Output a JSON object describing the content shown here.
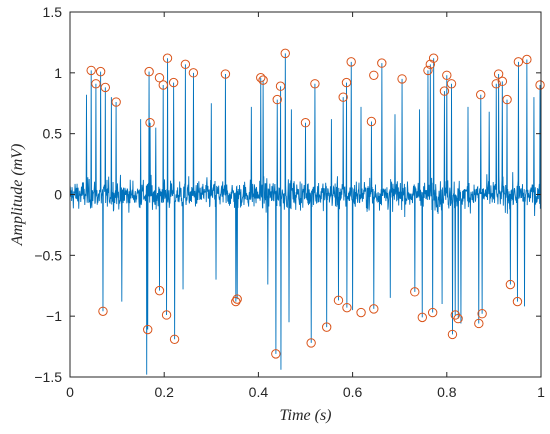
{
  "chart_data": {
    "type": "line",
    "title": "",
    "xlabel": "Time (s)",
    "ylabel": "Amplitude (mV)",
    "xlim": [
      0,
      1
    ],
    "ylim": [
      -1.5,
      1.5
    ],
    "xticks": [
      0,
      0.2,
      0.4,
      0.6,
      0.8,
      1
    ],
    "xtick_labels": [
      "0",
      "0.2",
      "0.4",
      "0.6",
      "0.8",
      "1"
    ],
    "yticks": [
      -1.5,
      -1,
      -0.5,
      0,
      0.5,
      1,
      1.5
    ],
    "ytick_labels": [
      "−1.5",
      "−1",
      "−0.5",
      "0",
      "0.5",
      "1",
      "1.5"
    ],
    "grid": false,
    "box": true,
    "colors": {
      "signal": "#0072BD",
      "markers": "#D95319",
      "axes": "#262626"
    },
    "noise_amplitude": 0.18,
    "series": [
      {
        "kind": "signal",
        "style": "line"
      },
      {
        "kind": "peaks",
        "style": "open-circle-markers",
        "points": [
          [
            0.045,
            1.02
          ],
          [
            0.055,
            0.91
          ],
          [
            0.065,
            1.01
          ],
          [
            0.075,
            0.88
          ],
          [
            0.098,
            0.76
          ],
          [
            0.168,
            1.01
          ],
          [
            0.17,
            0.59
          ],
          [
            0.19,
            0.96
          ],
          [
            0.198,
            0.9
          ],
          [
            0.207,
            1.12
          ],
          [
            0.22,
            0.92
          ],
          [
            0.245,
            1.07
          ],
          [
            0.262,
            1.0
          ],
          [
            0.33,
            0.99
          ],
          [
            0.405,
            0.96
          ],
          [
            0.41,
            0.94
          ],
          [
            0.44,
            0.78
          ],
          [
            0.447,
            0.89
          ],
          [
            0.457,
            1.16
          ],
          [
            0.5,
            0.59
          ],
          [
            0.52,
            0.91
          ],
          [
            0.58,
            0.8
          ],
          [
            0.587,
            0.92
          ],
          [
            0.597,
            1.09
          ],
          [
            0.64,
            0.6
          ],
          [
            0.645,
            0.98
          ],
          [
            0.662,
            1.08
          ],
          [
            0.705,
            0.95
          ],
          [
            0.76,
            1.02
          ],
          [
            0.765,
            1.07
          ],
          [
            0.772,
            1.12
          ],
          [
            0.795,
            0.85
          ],
          [
            0.8,
            0.98
          ],
          [
            0.81,
            0.91
          ],
          [
            0.872,
            0.82
          ],
          [
            0.905,
            0.91
          ],
          [
            0.91,
            0.99
          ],
          [
            0.918,
            0.93
          ],
          [
            0.928,
            0.78
          ],
          [
            0.952,
            1.09
          ],
          [
            0.97,
            1.11
          ],
          [
            0.998,
            0.9
          ],
          [
            0.07,
            -0.96
          ],
          [
            0.165,
            -1.11
          ],
          [
            0.19,
            -0.79
          ],
          [
            0.205,
            -0.99
          ],
          [
            0.222,
            -1.19
          ],
          [
            0.355,
            -0.86
          ],
          [
            0.352,
            -0.88
          ],
          [
            0.437,
            -1.31
          ],
          [
            0.512,
            -1.22
          ],
          [
            0.545,
            -1.09
          ],
          [
            0.57,
            -0.87
          ],
          [
            0.588,
            -0.93
          ],
          [
            0.618,
            -0.97
          ],
          [
            0.645,
            -0.94
          ],
          [
            0.732,
            -0.8
          ],
          [
            0.748,
            -1.01
          ],
          [
            0.77,
            -0.97
          ],
          [
            0.812,
            -1.15
          ],
          [
            0.818,
            -0.99
          ],
          [
            0.824,
            -1.02
          ],
          [
            0.868,
            -1.06
          ],
          [
            0.875,
            -0.98
          ],
          [
            0.935,
            -0.74
          ],
          [
            0.95,
            -0.88
          ]
        ]
      },
      {
        "kind": "spikes_unmarked",
        "style": "line-spikes",
        "points": [
          [
            0.035,
            0.82
          ],
          [
            0.088,
            0.8
          ],
          [
            0.15,
            0.62
          ],
          [
            0.182,
            0.55
          ],
          [
            0.3,
            0.75
          ],
          [
            0.385,
            0.72
          ],
          [
            0.47,
            0.7
          ],
          [
            0.555,
            0.62
          ],
          [
            0.618,
            0.72
          ],
          [
            0.69,
            0.66
          ],
          [
            0.742,
            0.7
          ],
          [
            0.845,
            0.72
          ],
          [
            0.89,
            0.68
          ],
          [
            0.985,
            0.8
          ],
          [
            0.11,
            -0.88
          ],
          [
            0.163,
            -1.48
          ],
          [
            0.24,
            -0.78
          ],
          [
            0.31,
            -0.7
          ],
          [
            0.42,
            -0.74
          ],
          [
            0.448,
            -1.44
          ],
          [
            0.465,
            -1.05
          ],
          [
            0.6,
            -0.95
          ],
          [
            0.68,
            -0.85
          ],
          [
            0.79,
            -0.9
          ],
          [
            0.83,
            -1.06
          ],
          [
            0.965,
            -0.92
          ]
        ]
      }
    ]
  }
}
